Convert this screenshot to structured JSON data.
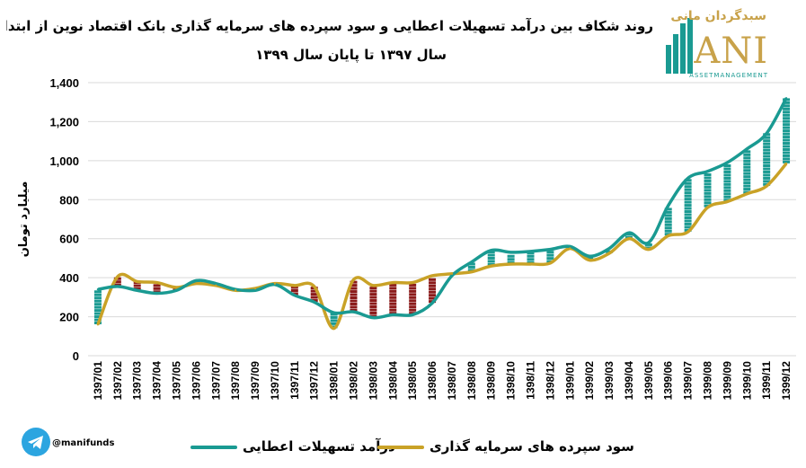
{
  "title_line1": "روند شکاف بین درآمد تسهیلات اعطایی و سود سپرده های سرمایه گذاری بانک اقتصاد نوین از ابتدای",
  "title_line2": "سال ۱۳۹۷ تا پایان سال ۱۳۹۹",
  "logo": {
    "fa": "سبدگردان مانی",
    "en": "ANI",
    "sub": "ASSETMANAGEMENT"
  },
  "handle": "@manifunds",
  "colors": {
    "income": "#1a9a92",
    "deposit": "#c9a227",
    "gap_pos": "#1a9a92",
    "gap_neg": "#8b1a1a",
    "grid": "#d9d9d9"
  },
  "chart_data": {
    "type": "line",
    "ylabel": "میلیارد تومان",
    "ylim": [
      0,
      1400
    ],
    "yticks": [
      "0",
      "200",
      "400",
      "600",
      "800",
      "1,000",
      "1,200",
      "1,400"
    ],
    "ytick_values": [
      0,
      200,
      400,
      600,
      800,
      1000,
      1200,
      1400
    ],
    "categories": [
      "1397/01",
      "1397/02",
      "1397/03",
      "1397/04",
      "1397/05",
      "1397/06",
      "1397/07",
      "1397/08",
      "1397/09",
      "1397/10",
      "1397/11",
      "1397/12",
      "1398/01",
      "1398/02",
      "1398/03",
      "1398/04",
      "1398/05",
      "1398/06",
      "1398/07",
      "1398/08",
      "1398/09",
      "1398/10",
      "1398/11",
      "1398/12",
      "1399/01",
      "1399/02",
      "1399/03",
      "1399/04",
      "1399/05",
      "1399/06",
      "1399/07",
      "1399/08",
      "1399/09",
      "1399/10",
      "1399/11",
      "1399/12"
    ],
    "series": [
      {
        "name": "درآمد تسهیلات اعطایی",
        "values": [
          340,
          355,
          335,
          320,
          335,
          385,
          370,
          340,
          335,
          365,
          310,
          275,
          220,
          225,
          195,
          210,
          210,
          270,
          410,
          480,
          540,
          530,
          535,
          545,
          560,
          510,
          550,
          630,
          580,
          770,
          910,
          945,
          990,
          1060,
          1140,
          1320
        ]
      },
      {
        "name": "سود سپرده های سرمایه گذاری",
        "values": [
          160,
          405,
          380,
          375,
          350,
          370,
          360,
          335,
          345,
          370,
          360,
          355,
          140,
          390,
          360,
          375,
          375,
          410,
          420,
          430,
          460,
          470,
          470,
          475,
          550,
          490,
          525,
          600,
          545,
          615,
          635,
          760,
          790,
          830,
          870,
          985
        ]
      }
    ],
    "legend_position": "bottom",
    "grid": true
  }
}
